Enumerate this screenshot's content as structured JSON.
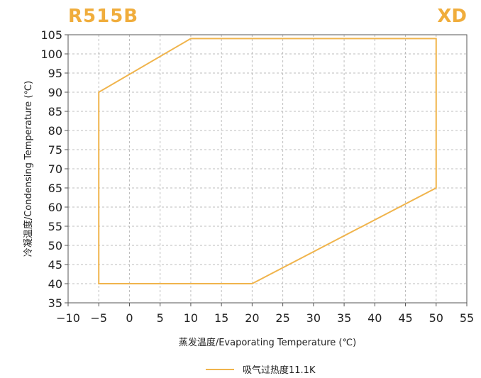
{
  "header": {
    "model": "R515B",
    "brand": "XD"
  },
  "chart_data": {
    "type": "line",
    "xlabel": "蒸发温度/Evaporating Temperature (℃)",
    "ylabel": "冷凝温度/Condensing Temperature (℃)",
    "xlim": [
      -10,
      55
    ],
    "ylim": [
      35,
      105
    ],
    "xticks": [
      -10,
      -5,
      0,
      5,
      10,
      15,
      20,
      25,
      30,
      35,
      40,
      45,
      50,
      55
    ],
    "yticks": [
      35,
      40,
      45,
      50,
      55,
      60,
      65,
      70,
      75,
      80,
      85,
      90,
      95,
      100,
      105
    ],
    "grid": true,
    "legend_position": "bottom-center",
    "series": [
      {
        "name": "吸气过热度11.1K",
        "color": "#f0b44c",
        "closed": true,
        "points": [
          [
            -5,
            40
          ],
          [
            20,
            40
          ],
          [
            50,
            65
          ],
          [
            50,
            104
          ],
          [
            10,
            104
          ],
          [
            -5,
            90
          ]
        ]
      }
    ]
  }
}
